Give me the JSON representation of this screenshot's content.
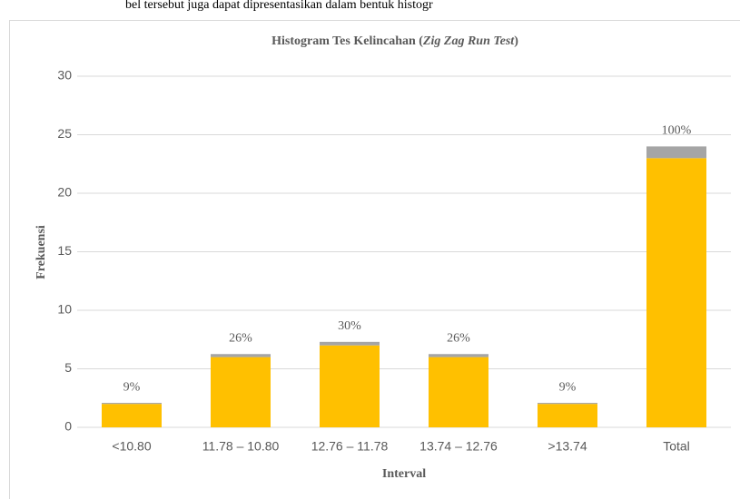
{
  "header_text": "bel tersebut juga dapat dipresentasikan dalam bentuk histogr",
  "chart_data": {
    "type": "bar",
    "title": [
      "Histogram Tes Kelincahan (",
      "Zig Zag Run Test",
      ")"
    ],
    "x_label": "Interval",
    "y_label": "Frekuensi",
    "categories": [
      "<10.80",
      "11.78 – 10.80",
      "12.76 – 11.78",
      "13.74 – 12.76",
      ">13.74",
      "Total"
    ],
    "series": [
      {
        "color": "#ffc000",
        "values": [
          2,
          6,
          7,
          6,
          2,
          23
        ]
      },
      {
        "color": "#a5a5a5",
        "values": [
          0.09,
          0.26,
          0.3,
          0.26,
          0.09,
          1.0
        ],
        "value_labels": [
          "9%",
          "26%",
          "30%",
          "26%",
          "9%",
          "100%"
        ]
      }
    ],
    "stacked": true,
    "ylim": [
      0,
      30
    ],
    "yticks": [
      0,
      5,
      10,
      15,
      20,
      25,
      30
    ],
    "grid": true
  }
}
